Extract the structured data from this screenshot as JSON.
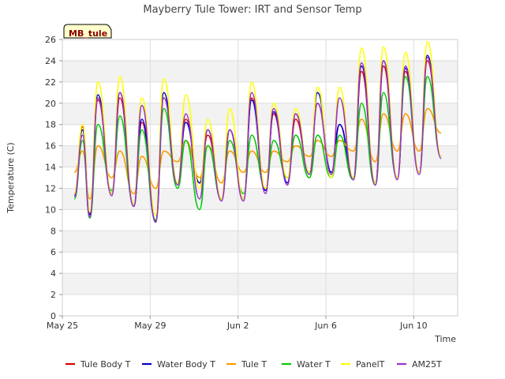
{
  "chart_data": {
    "type": "line",
    "title": "Mayberry Tule Tower: IRT and Sensor Temp",
    "xlabel": "Time",
    "ylabel": "Temperature (C)",
    "badge": "MB_tule",
    "ylim": [
      0,
      26
    ],
    "xlim": [
      0,
      18
    ],
    "y_ticks": [
      0,
      2,
      4,
      6,
      8,
      10,
      12,
      14,
      16,
      18,
      20,
      22,
      24,
      26
    ],
    "x_ticks": [
      {
        "value": 0,
        "label": "May 25"
      },
      {
        "value": 4,
        "label": "May 29"
      },
      {
        "value": 8,
        "label": "Jun 2"
      },
      {
        "value": 12,
        "label": "Jun 6"
      },
      {
        "value": 16,
        "label": "Jun 10"
      }
    ],
    "x_days": [
      0.3,
      1,
      2,
      3,
      4,
      5,
      6,
      7,
      8,
      9,
      10,
      11,
      12,
      13,
      14,
      15,
      16,
      17,
      17.5
    ],
    "series": [
      {
        "name": "Tule Body T",
        "color": "#dd0000",
        "mins": [
          11.5,
          9.6,
          11.5,
          10.5,
          9.0,
          12.5,
          12.5,
          11.0,
          11.0,
          11.8,
          12.5,
          13.5,
          13.5,
          13.0,
          12.5,
          13.0,
          13.5,
          15.0
        ],
        "maxs": [
          17.8,
          20.3,
          20.5,
          18.2,
          20.5,
          18.5,
          17.0,
          17.5,
          20.5,
          19.0,
          18.5,
          20.0,
          18.0,
          23.0,
          23.5,
          23.0,
          24.0
        ]
      },
      {
        "name": "Water Body T",
        "color": "#0000cc",
        "mins": [
          11.3,
          9.5,
          11.5,
          10.3,
          8.9,
          12.5,
          12.5,
          11.0,
          11.0,
          11.8,
          12.5,
          13.5,
          13.5,
          13.0,
          12.5,
          13.0,
          13.5,
          15.0
        ],
        "maxs": [
          17.5,
          20.8,
          21.0,
          18.5,
          21.0,
          18.2,
          17.5,
          17.5,
          20.3,
          19.2,
          19.0,
          21.0,
          18.0,
          23.5,
          24.0,
          23.3,
          24.5
        ]
      },
      {
        "name": "Tule T",
        "color": "#ff9900",
        "mins": [
          13.5,
          11.0,
          13.0,
          11.5,
          12.0,
          14.5,
          13.0,
          12.5,
          13.5,
          13.5,
          14.5,
          15.0,
          15.0,
          15.5,
          14.5,
          15.5,
          15.5,
          17.2
        ],
        "maxs": [
          15.5,
          16.0,
          15.5,
          15.0,
          15.5,
          16.5,
          16.0,
          15.5,
          15.5,
          15.5,
          16.0,
          16.5,
          16.5,
          18.5,
          19.0,
          19.0,
          19.5
        ]
      },
      {
        "name": "Water T",
        "color": "#00cc00",
        "mins": [
          11.0,
          9.2,
          11.8,
          10.5,
          9.0,
          12.0,
          10.0,
          11.0,
          11.5,
          12.0,
          13.0,
          13.0,
          13.0,
          12.8,
          12.3,
          13.0,
          13.5,
          15.0
        ],
        "maxs": [
          16.5,
          18.0,
          18.8,
          17.5,
          19.5,
          16.5,
          16.0,
          16.5,
          17.0,
          16.5,
          17.0,
          17.0,
          17.0,
          20.0,
          21.0,
          22.5,
          22.5
        ]
      },
      {
        "name": "PanelT",
        "color": "#ffff00",
        "mins": [
          11.5,
          9.8,
          11.5,
          10.5,
          9.5,
          12.5,
          12.0,
          11.0,
          11.0,
          12.0,
          13.0,
          13.5,
          13.0,
          13.0,
          12.5,
          13.0,
          13.5,
          15.0
        ],
        "maxs": [
          18.0,
          22.0,
          22.5,
          20.5,
          22.3,
          20.8,
          18.5,
          19.5,
          22.0,
          20.0,
          19.5,
          21.5,
          21.5,
          25.2,
          25.3,
          24.8,
          25.8
        ]
      },
      {
        "name": "AM25T",
        "color": "#9933cc",
        "mins": [
          11.2,
          9.3,
          11.3,
          10.3,
          8.8,
          12.3,
          11.0,
          10.8,
          10.8,
          11.5,
          12.3,
          13.3,
          13.3,
          12.8,
          12.3,
          12.8,
          13.3,
          14.8
        ],
        "maxs": [
          17.0,
          20.5,
          21.0,
          19.8,
          20.5,
          19.0,
          17.5,
          17.5,
          21.0,
          19.5,
          19.0,
          20.0,
          20.5,
          23.8,
          24.0,
          23.5,
          24.3
        ]
      }
    ]
  }
}
